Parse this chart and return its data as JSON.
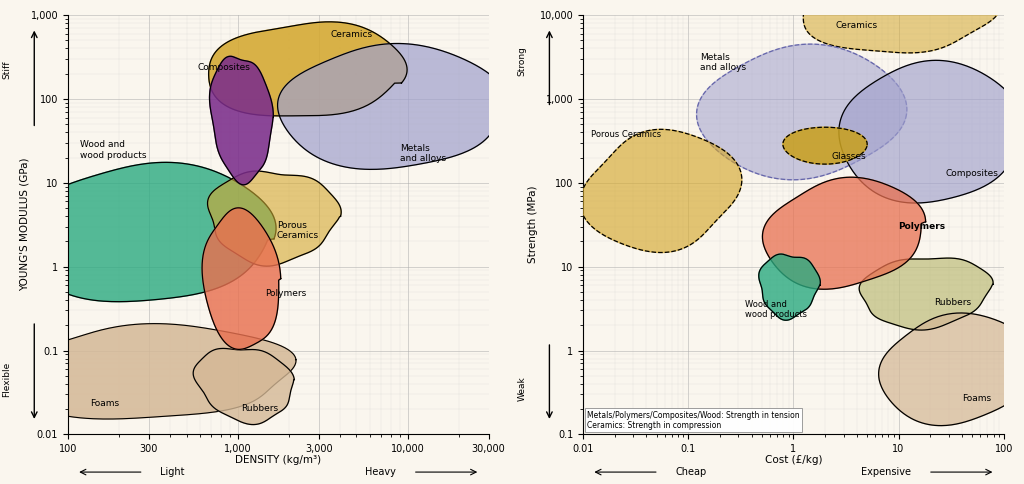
{
  "fig_width": 10.24,
  "fig_height": 4.84,
  "bg_color": "#faf6ee",
  "left_chart": {
    "title": "YOUNG'S MODULUS (GPa)",
    "xlabel": "DENSITY (kg/m³)",
    "xlim_log": [
      100,
      30000
    ],
    "ylim_log": [
      0.01,
      1000
    ],
    "xticks": [
      100,
      300,
      1000,
      3000,
      10000,
      30000
    ],
    "xtick_labels": [
      "100",
      "300",
      "1,000",
      "3,000",
      "10,000",
      "30,000"
    ],
    "yticks": [
      0.01,
      0.1,
      1,
      10,
      100,
      1000
    ],
    "ytick_labels": [
      "0.01",
      "0.1",
      "1",
      "10",
      "100",
      "1,000"
    ]
  },
  "right_chart": {
    "title": "Strength (MPa)",
    "xlabel": "Cost (£/kg)",
    "xlim_log": [
      0.01,
      100
    ],
    "ylim_log": [
      0.1,
      10000
    ],
    "xticks": [
      0.01,
      0.1,
      1,
      10,
      100
    ],
    "xtick_labels": [
      "0.01",
      "0.1",
      "1",
      "10",
      "100"
    ],
    "yticks": [
      0.1,
      1,
      10,
      100,
      1000,
      10000
    ],
    "ytick_labels": [
      "0.1",
      "1",
      "10",
      "100",
      "1,000",
      "10,000"
    ],
    "note": "Metals/Polymers/Composites/Wood: Strength in tension\nCeramics: Strength in compression"
  }
}
